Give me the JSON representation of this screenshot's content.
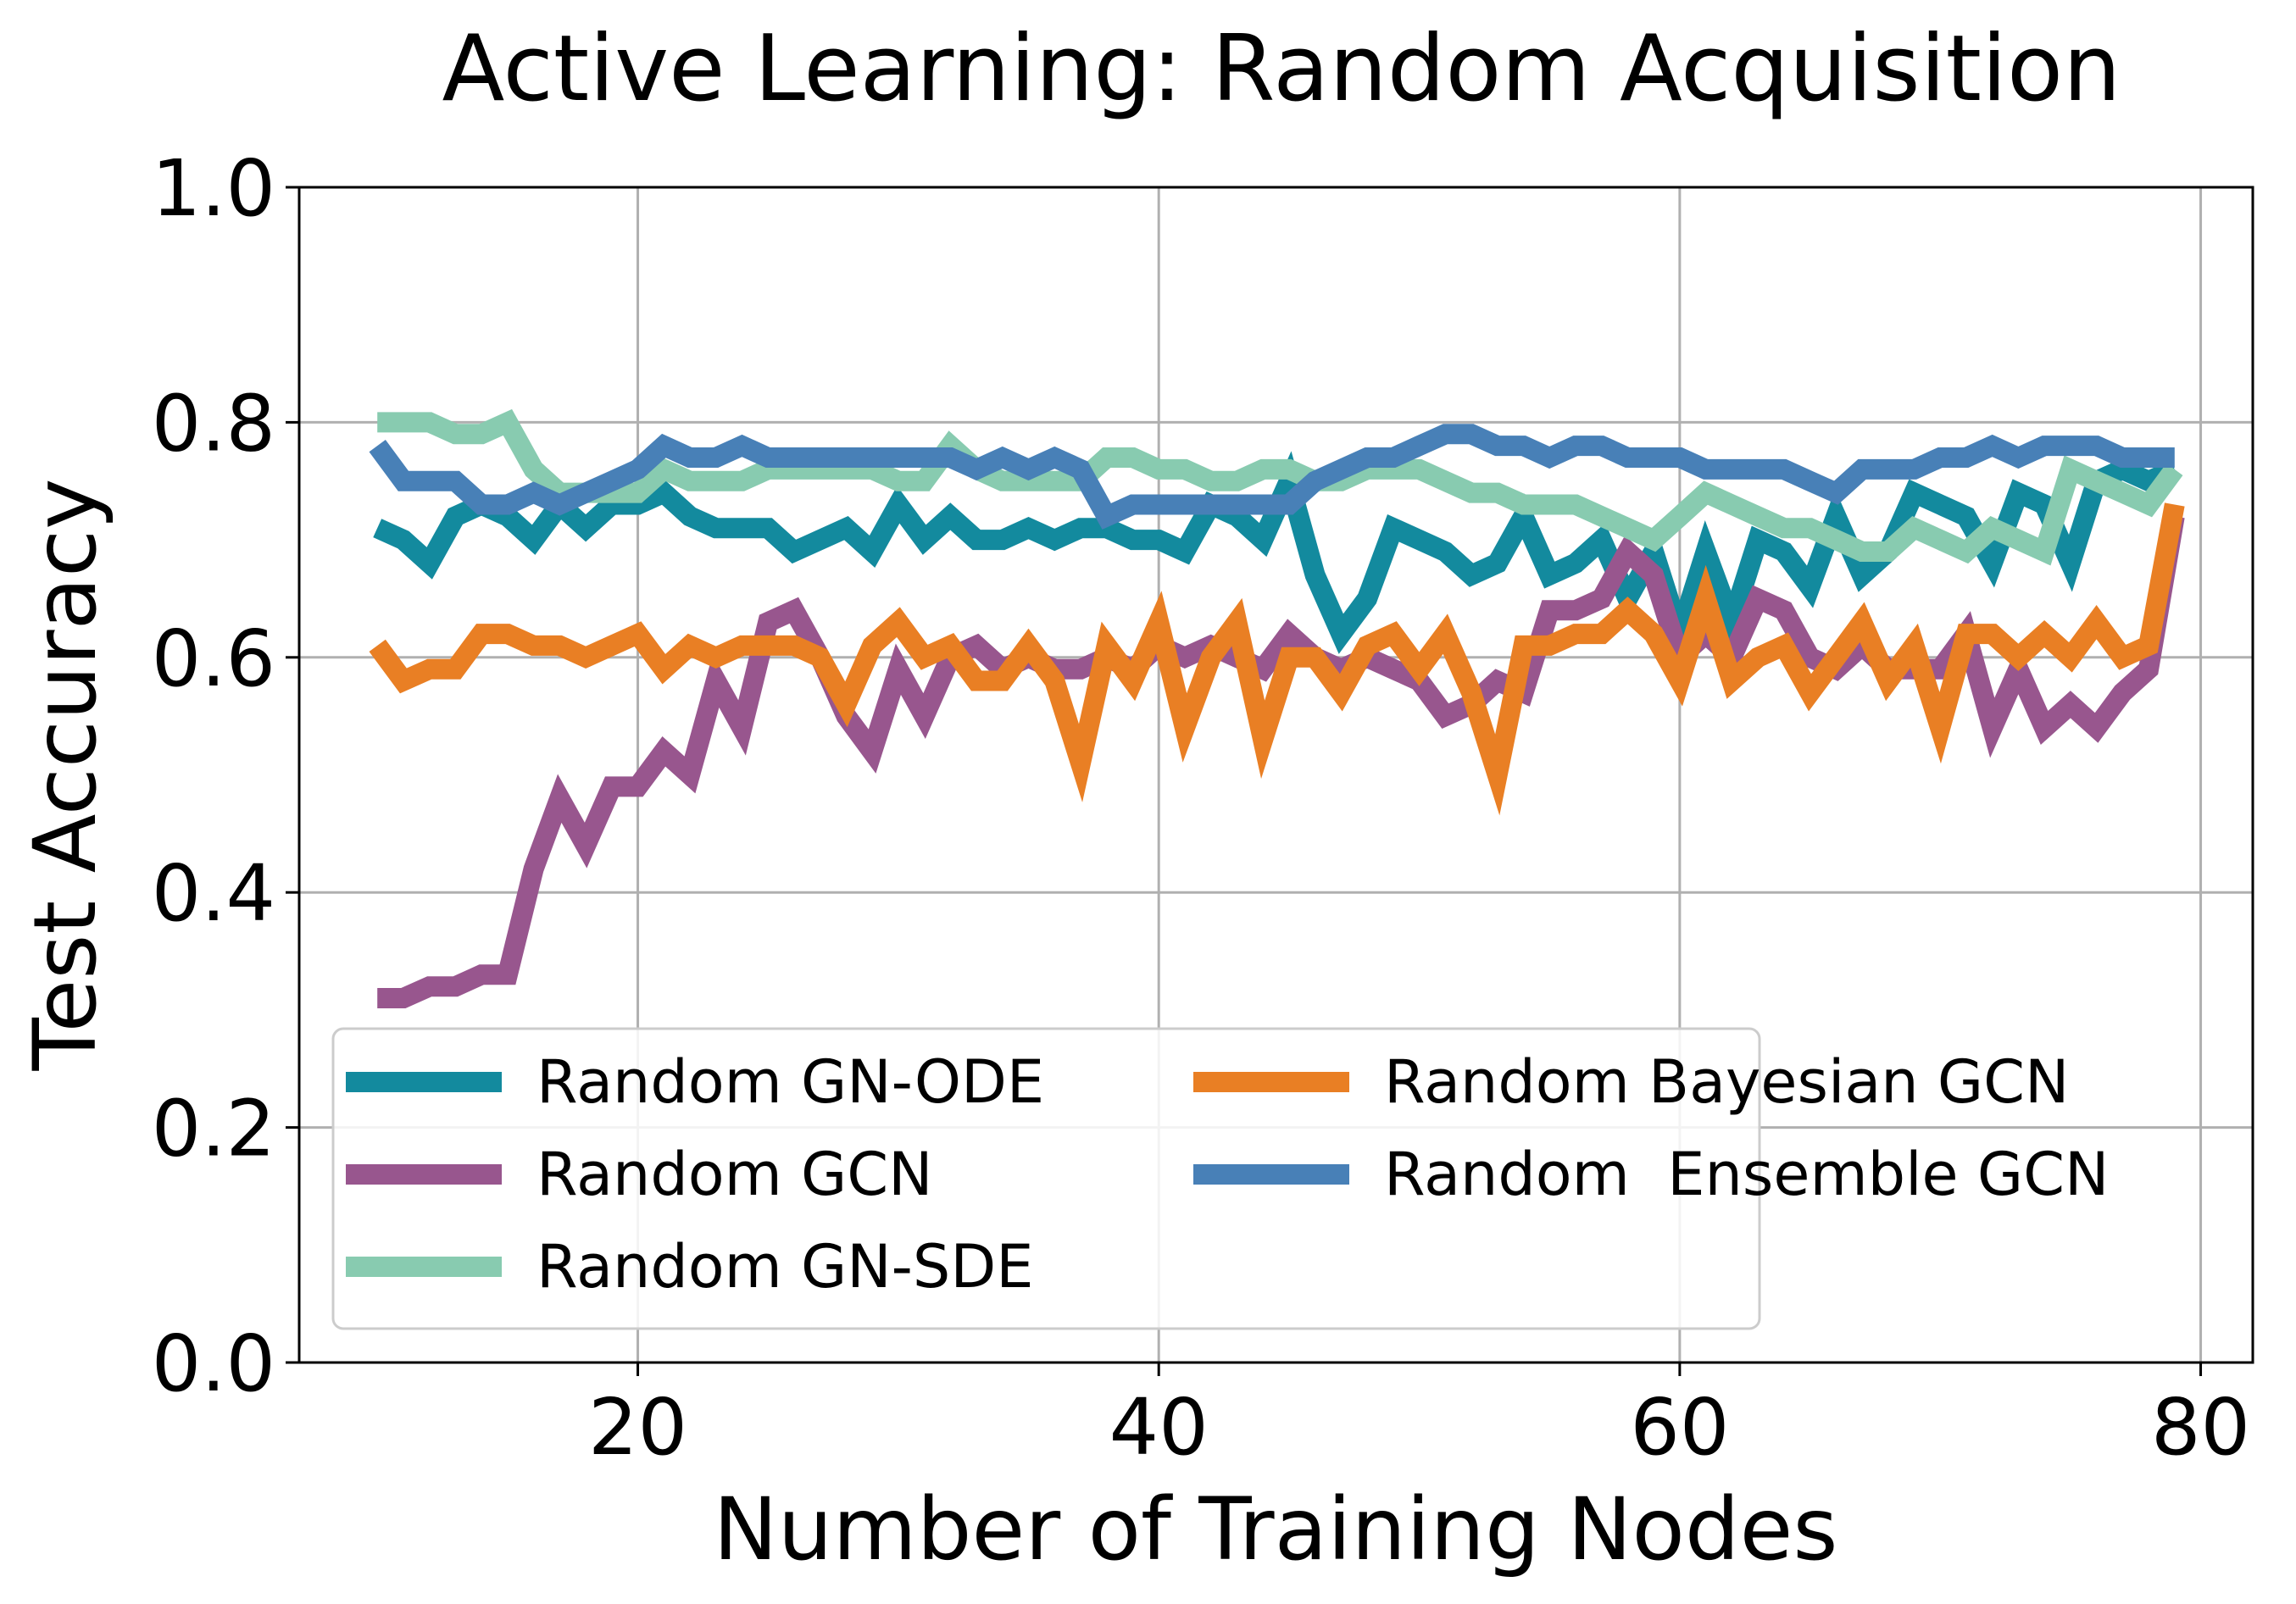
{
  "chart_data": {
    "type": "line",
    "title": "Active Learning: Random Acquisition",
    "xlabel": "Number of Training Nodes",
    "ylabel": "Test Accuracy",
    "xlim": [
      7,
      82
    ],
    "ylim": [
      0.0,
      1.0
    ],
    "xticks": [
      20,
      40,
      60,
      80
    ],
    "xtick_labels": [
      "20",
      "40",
      "60",
      "80"
    ],
    "yticks": [
      0.0,
      0.2,
      0.4,
      0.6,
      0.8,
      1.0
    ],
    "ytick_labels": [
      "0.0",
      "0.2",
      "0.4",
      "0.6",
      "0.8",
      "1.0"
    ],
    "grid": true,
    "legend": {
      "placement": "lower-left",
      "columns": 2
    },
    "x": [
      10,
      11,
      12,
      13,
      14,
      15,
      16,
      17,
      18,
      19,
      20,
      21,
      22,
      23,
      24,
      25,
      26,
      27,
      28,
      29,
      30,
      31,
      32,
      33,
      34,
      35,
      36,
      37,
      38,
      39,
      40,
      41,
      42,
      43,
      44,
      45,
      46,
      47,
      48,
      49,
      50,
      51,
      52,
      53,
      54,
      55,
      56,
      57,
      58,
      59,
      60,
      61,
      62,
      63,
      64,
      65,
      66,
      67,
      68,
      69,
      70,
      71,
      72,
      73,
      74,
      75,
      76,
      77,
      78,
      79
    ],
    "series": [
      {
        "name": "Random GN-ODE",
        "color": "#138a9e",
        "values": [
          0.71,
          0.7,
          0.68,
          0.72,
          0.73,
          0.72,
          0.7,
          0.73,
          0.71,
          0.73,
          0.73,
          0.74,
          0.72,
          0.71,
          0.71,
          0.71,
          0.69,
          0.7,
          0.71,
          0.69,
          0.73,
          0.7,
          0.72,
          0.7,
          0.7,
          0.71,
          0.7,
          0.71,
          0.71,
          0.7,
          0.7,
          0.69,
          0.73,
          0.72,
          0.7,
          0.75,
          0.67,
          0.62,
          0.65,
          0.71,
          0.7,
          0.69,
          0.67,
          0.68,
          0.72,
          0.67,
          0.68,
          0.7,
          0.65,
          0.69,
          0.62,
          0.69,
          0.63,
          0.7,
          0.69,
          0.66,
          0.72,
          0.67,
          0.69,
          0.74,
          0.73,
          0.72,
          0.68,
          0.74,
          0.73,
          0.68,
          0.75,
          0.76,
          0.75,
          0.76
        ]
      },
      {
        "name": "Random GCN",
        "color": "#98568e",
        "values": [
          0.31,
          0.31,
          0.32,
          0.32,
          0.33,
          0.33,
          0.42,
          0.48,
          0.44,
          0.49,
          0.49,
          0.52,
          0.5,
          0.58,
          0.54,
          0.63,
          0.64,
          0.6,
          0.55,
          0.52,
          0.59,
          0.55,
          0.6,
          0.61,
          0.59,
          0.6,
          0.59,
          0.59,
          0.6,
          0.59,
          0.61,
          0.6,
          0.61,
          0.6,
          0.59,
          0.62,
          0.6,
          0.59,
          0.6,
          0.59,
          0.58,
          0.55,
          0.56,
          0.58,
          0.57,
          0.64,
          0.64,
          0.65,
          0.69,
          0.67,
          0.6,
          0.62,
          0.6,
          0.65,
          0.64,
          0.6,
          0.59,
          0.61,
          0.59,
          0.59,
          0.59,
          0.62,
          0.54,
          0.59,
          0.54,
          0.56,
          0.54,
          0.57,
          0.59,
          0.72
        ]
      },
      {
        "name": "Random GN-SDE",
        "color": "#88cbb0",
        "values": [
          0.8,
          0.8,
          0.8,
          0.79,
          0.79,
          0.8,
          0.76,
          0.74,
          0.74,
          0.74,
          0.74,
          0.76,
          0.75,
          0.75,
          0.75,
          0.76,
          0.76,
          0.76,
          0.76,
          0.76,
          0.75,
          0.75,
          0.78,
          0.76,
          0.75,
          0.75,
          0.75,
          0.75,
          0.77,
          0.77,
          0.76,
          0.76,
          0.75,
          0.75,
          0.76,
          0.76,
          0.75,
          0.75,
          0.76,
          0.76,
          0.76,
          0.75,
          0.74,
          0.74,
          0.73,
          0.73,
          0.73,
          0.72,
          0.71,
          0.7,
          0.72,
          0.74,
          0.73,
          0.72,
          0.71,
          0.71,
          0.7,
          0.69,
          0.69,
          0.71,
          0.7,
          0.69,
          0.71,
          0.7,
          0.69,
          0.76,
          0.75,
          0.74,
          0.73,
          0.76
        ]
      },
      {
        "name": "Random Bayesian GCN",
        "color": "#e97f24",
        "values": [
          0.61,
          0.58,
          0.59,
          0.59,
          0.62,
          0.62,
          0.61,
          0.61,
          0.6,
          0.61,
          0.62,
          0.59,
          0.61,
          0.6,
          0.61,
          0.61,
          0.61,
          0.6,
          0.56,
          0.61,
          0.63,
          0.6,
          0.61,
          0.58,
          0.58,
          0.61,
          0.58,
          0.51,
          0.61,
          0.58,
          0.63,
          0.54,
          0.6,
          0.63,
          0.53,
          0.6,
          0.6,
          0.57,
          0.61,
          0.62,
          0.59,
          0.62,
          0.57,
          0.5,
          0.61,
          0.61,
          0.62,
          0.62,
          0.64,
          0.62,
          0.58,
          0.65,
          0.58,
          0.6,
          0.61,
          0.57,
          0.6,
          0.63,
          0.58,
          0.61,
          0.54,
          0.62,
          0.62,
          0.6,
          0.62,
          0.6,
          0.63,
          0.6,
          0.61,
          0.73
        ]
      },
      {
        "name": "Random  Ensemble GCN",
        "color": "#4880b7",
        "values": [
          0.78,
          0.75,
          0.75,
          0.75,
          0.73,
          0.73,
          0.74,
          0.73,
          0.74,
          0.75,
          0.76,
          0.78,
          0.77,
          0.77,
          0.78,
          0.77,
          0.77,
          0.77,
          0.77,
          0.77,
          0.77,
          0.77,
          0.77,
          0.76,
          0.77,
          0.76,
          0.77,
          0.76,
          0.72,
          0.73,
          0.73,
          0.73,
          0.73,
          0.73,
          0.73,
          0.73,
          0.75,
          0.76,
          0.77,
          0.77,
          0.78,
          0.79,
          0.79,
          0.78,
          0.78,
          0.77,
          0.78,
          0.78,
          0.77,
          0.77,
          0.77,
          0.76,
          0.76,
          0.76,
          0.76,
          0.75,
          0.74,
          0.76,
          0.76,
          0.76,
          0.77,
          0.77,
          0.78,
          0.77,
          0.78,
          0.78,
          0.78,
          0.77,
          0.77,
          0.77
        ]
      }
    ]
  }
}
